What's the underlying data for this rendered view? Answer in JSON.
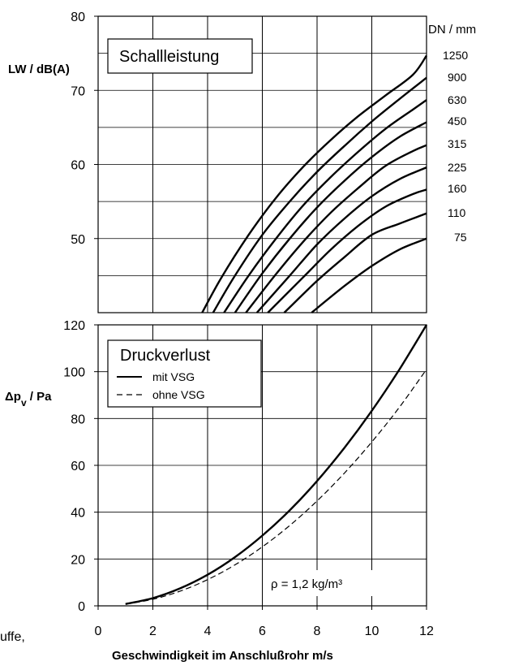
{
  "chart_data": [
    {
      "type": "line",
      "title": "Schallleistung",
      "ylabel": "LW / dB(A)",
      "xlim": [
        0,
        12
      ],
      "ylim": [
        40,
        80
      ],
      "y_ticks": [
        50,
        60,
        70,
        80
      ],
      "grid": true,
      "legend_title": "DN / mm",
      "series": [
        {
          "name": "1250",
          "x": [
            3.8,
            4.5,
            5.5,
            6.5,
            7.5,
            8.5,
            9.5,
            10.5,
            11.5,
            12
          ],
          "y": [
            40.0,
            44.7,
            50.5,
            55.5,
            59.7,
            63.3,
            66.5,
            69.3,
            72.1,
            74.7
          ]
        },
        {
          "name": "900",
          "x": [
            4.2,
            5.0,
            6.0,
            7.0,
            8.0,
            9.0,
            10.0,
            11.0,
            12
          ],
          "y": [
            40.0,
            45.0,
            50.5,
            55.0,
            59.0,
            62.5,
            65.8,
            68.8,
            71.7
          ]
        },
        {
          "name": "630",
          "x": [
            4.6,
            5.5,
            6.5,
            7.5,
            8.5,
            9.5,
            10.5,
            11.5,
            12
          ],
          "y": [
            40.0,
            45.0,
            50.0,
            54.5,
            58.3,
            61.7,
            64.8,
            67.4,
            68.7
          ]
        },
        {
          "name": "450",
          "x": [
            5.0,
            6.0,
            7.0,
            8.0,
            9.0,
            10.0,
            11.0,
            12
          ],
          "y": [
            40.0,
            45.3,
            50.0,
            54.2,
            57.8,
            61.0,
            63.7,
            65.7
          ]
        },
        {
          "name": "315",
          "x": [
            5.4,
            6.5,
            7.5,
            8.5,
            9.5,
            10.5,
            11.5,
            12
          ],
          "y": [
            40.0,
            45.2,
            49.6,
            53.5,
            56.8,
            59.8,
            61.8,
            62.6
          ]
        },
        {
          "name": "225",
          "x": [
            5.8,
            7.0,
            8.0,
            9.0,
            10.0,
            11.0,
            12
          ],
          "y": [
            40.0,
            45.0,
            49.2,
            52.7,
            55.7,
            58.0,
            59.6
          ]
        },
        {
          "name": "160",
          "x": [
            6.2,
            7.5,
            8.5,
            9.5,
            10.5,
            11.5,
            12
          ],
          "y": [
            40.0,
            44.8,
            48.5,
            51.7,
            54.3,
            56.0,
            56.6
          ]
        },
        {
          "name": "110",
          "x": [
            6.8,
            8.0,
            9.0,
            10.0,
            11.0,
            12
          ],
          "y": [
            40.0,
            44.3,
            47.5,
            50.5,
            52.0,
            53.4
          ]
        },
        {
          "name": "75",
          "x": [
            7.8,
            9.0,
            10.0,
            11.0,
            12
          ],
          "y": [
            40.0,
            43.6,
            46.3,
            48.5,
            50.0
          ]
        }
      ]
    },
    {
      "type": "line",
      "title": "Druckverlust",
      "ylabel": "Δpv / Pa",
      "xlabel": "Geschwindigkeit im Anschlußrohr m/s",
      "xlim": [
        0,
        12
      ],
      "ylim": [
        0,
        120
      ],
      "x_ticks": [
        0,
        2,
        4,
        6,
        8,
        10,
        12
      ],
      "y_ticks": [
        0,
        20,
        40,
        60,
        80,
        100,
        120
      ],
      "grid": true,
      "annotation": "ρ = 1,2 kg/m³",
      "series": [
        {
          "name": "mit VSG",
          "style": "solid",
          "x": [
            1,
            2,
            3,
            4,
            5,
            6,
            7,
            8,
            9,
            10,
            11,
            12
          ],
          "y": [
            0.8,
            3.3,
            7.5,
            13.3,
            20.8,
            30.0,
            40.8,
            53.3,
            67.5,
            83.3,
            100.8,
            120.0
          ]
        },
        {
          "name": "ohne VSG",
          "style": "dashed",
          "x": [
            1,
            2,
            3,
            4,
            5,
            6,
            7,
            8,
            9,
            10,
            11,
            12
          ],
          "y": [
            0.7,
            2.8,
            6.3,
            11.2,
            17.5,
            25.2,
            34.3,
            44.8,
            56.7,
            70.0,
            84.7,
            101.0
          ]
        }
      ]
    }
  ],
  "cut_text": "uffe,"
}
